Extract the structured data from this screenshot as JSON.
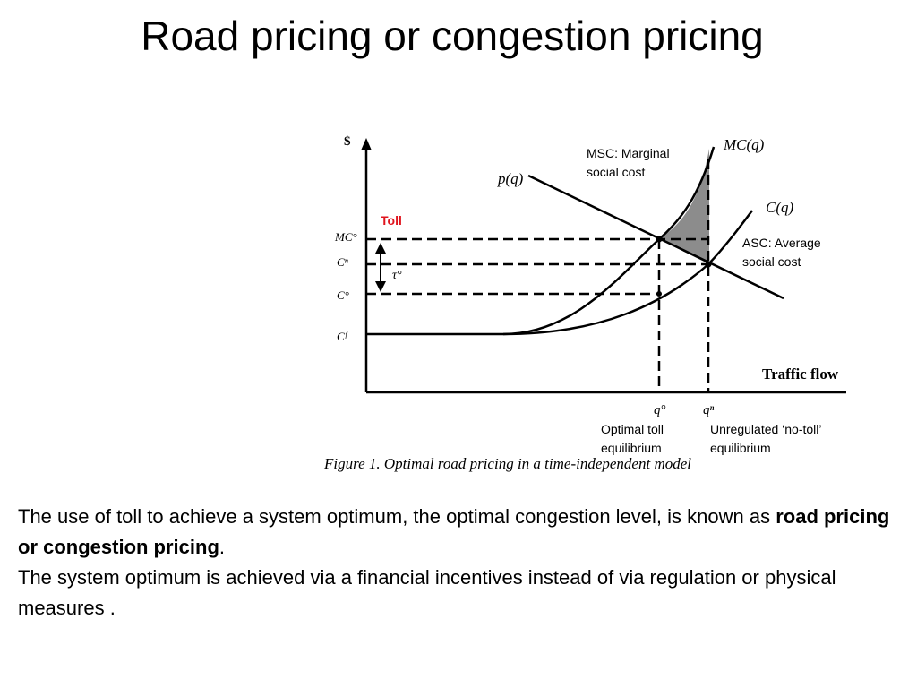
{
  "slide": {
    "title": "Road pricing or congestion pricing"
  },
  "figure": {
    "y_axis_symbol": "$",
    "x_axis_label": "Traffic flow",
    "toll_label": "Toll",
    "tau_label": "τ°",
    "y_ticks": [
      "MC°",
      "Cⁿ",
      "C°",
      "Cᶠ"
    ],
    "x_ticks": [
      "q°",
      "qⁿ"
    ],
    "curve_labels": {
      "demand": "p(q)",
      "marginal": "MC(q)",
      "average": "C(q)"
    },
    "annotations": {
      "msc_line1": "MSC: Marginal",
      "msc_line2": "social cost",
      "asc_line1": "ASC: Average",
      "asc_line2": "social cost",
      "optimal_line1": "Optimal toll",
      "optimal_line2": "equilibrium",
      "unreg_line1": "Unregulated ‘no-toll’",
      "unreg_line2": "equilibrium"
    },
    "caption": "Figure 1. Optimal road pricing in a time-independent model",
    "colors": {
      "toll": "#e0141e",
      "shaded": "#8c8c8c"
    }
  },
  "body": {
    "para1_start": "The use of toll to achieve a system optimum, the optimal congestion level, is known as ",
    "para1_bold": "road pricing or congestion pricing",
    "para1_end": ".",
    "para2": "The system optimum is achieved via a financial incentives instead of via regulation or physical measures ."
  }
}
